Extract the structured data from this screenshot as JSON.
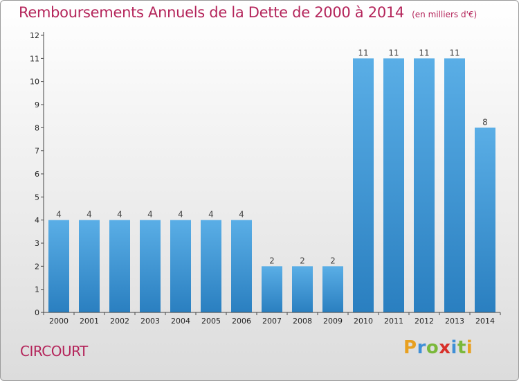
{
  "header": {
    "title": "Remboursements Annuels de la Dette de 2000 à 2014",
    "unit": "(en milliers d'€)"
  },
  "footer": {
    "commune": "CIRCOURT",
    "brand": [
      "P",
      "r",
      "o",
      "x",
      "i",
      "t",
      "i"
    ],
    "brand_colors": [
      "#e8a020",
      "#3f8fd6",
      "#7ab83a",
      "#d8302a",
      "#3f8fd6",
      "#7ab83a",
      "#e8a020"
    ]
  },
  "colors": {
    "bar_light": "#5aaee6",
    "bar_dark": "#2a7fc0",
    "axis": "#444444",
    "title": "#b4245a"
  },
  "chart_data": {
    "type": "bar",
    "categories": [
      "2000",
      "2001",
      "2002",
      "2003",
      "2004",
      "2005",
      "2006",
      "2007",
      "2008",
      "2009",
      "2010",
      "2011",
      "2012",
      "2013",
      "2014"
    ],
    "values": [
      4,
      4,
      4,
      4,
      4,
      4,
      4,
      2,
      2,
      2,
      11,
      11,
      11,
      11,
      8
    ],
    "data_labels": [
      "4",
      "4",
      "4",
      "4",
      "4",
      "4",
      "4",
      "2",
      "2",
      "2",
      "11",
      "11",
      "11",
      "11",
      "8"
    ],
    "yticks": [
      "0",
      "1",
      "2",
      "3",
      "4",
      "5",
      "6",
      "7",
      "8",
      "9",
      "10",
      "11",
      "12"
    ],
    "ylim": [
      0,
      12
    ],
    "grid": false,
    "legend": "none"
  }
}
